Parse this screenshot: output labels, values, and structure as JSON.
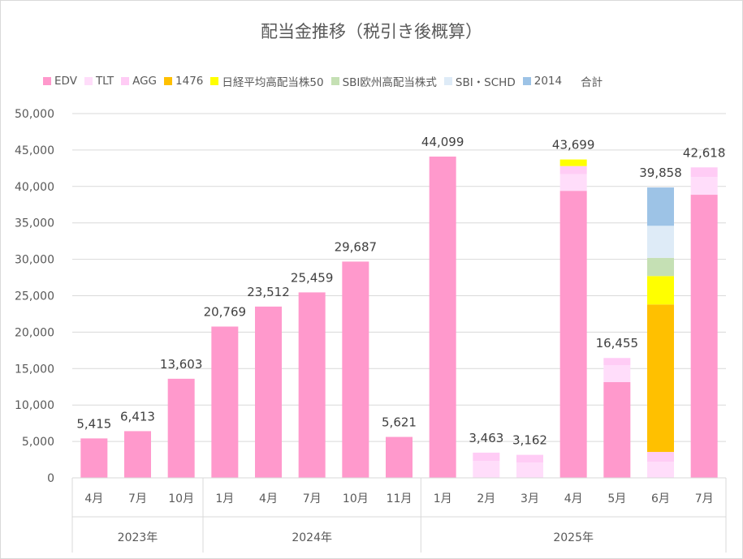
{
  "chart_data": {
    "type": "bar",
    "stacked": true,
    "title": "配当金推移（税引き後概算）",
    "ylim": [
      0,
      50000
    ],
    "yticks": [
      0,
      5000,
      10000,
      15000,
      20000,
      25000,
      30000,
      35000,
      40000,
      45000,
      50000
    ],
    "ytick_labels": [
      "0",
      "5,000",
      "10,000",
      "15,000",
      "20,000",
      "25,000",
      "30,000",
      "35,000",
      "40,000",
      "45,000",
      "50,000"
    ],
    "grid": true,
    "legend_position": "top",
    "categories": [
      "4月",
      "7月",
      "10月",
      "1月",
      "4月",
      "7月",
      "10月",
      "11月",
      "1月",
      "2月",
      "3月",
      "4月",
      "5月",
      "6月",
      "7月"
    ],
    "year_groups": [
      {
        "label": "2023年",
        "count": 3
      },
      {
        "label": "2024年",
        "count": 5
      },
      {
        "label": "2025年",
        "count": 7
      }
    ],
    "series": [
      {
        "name": "EDV",
        "color": "#FF99CC",
        "values": [
          5415,
          6413,
          13603,
          20769,
          23512,
          25459,
          29687,
          5621,
          44099,
          0,
          0,
          39400,
          13140,
          0,
          38860
        ]
      },
      {
        "name": "TLT",
        "color": "#FFDDFA",
        "values": [
          0,
          0,
          0,
          0,
          0,
          0,
          0,
          0,
          0,
          2340,
          2100,
          2300,
          2340,
          2200,
          2440
        ]
      },
      {
        "name": "AGG",
        "color": "#FFCCF5",
        "values": [
          0,
          0,
          0,
          0,
          0,
          0,
          0,
          0,
          0,
          1123,
          1062,
          1100,
          975,
          1360,
          1318
        ]
      },
      {
        "name": "1476",
        "color": "#FFC000",
        "values": [
          0,
          0,
          0,
          0,
          0,
          0,
          0,
          0,
          0,
          0,
          0,
          0,
          0,
          20240,
          0
        ]
      },
      {
        "name": "日経平均高配当株50",
        "color": "#FFFF00",
        "values": [
          0,
          0,
          0,
          0,
          0,
          0,
          0,
          0,
          0,
          0,
          0,
          899,
          0,
          3900,
          0
        ]
      },
      {
        "name": "SBI欧州高配当株式",
        "color": "#C5E0B4",
        "values": [
          0,
          0,
          0,
          0,
          0,
          0,
          0,
          0,
          0,
          0,
          0,
          0,
          0,
          2500,
          0
        ]
      },
      {
        "name": "SBI・SCHD",
        "color": "#DEEBF7",
        "values": [
          0,
          0,
          0,
          0,
          0,
          0,
          0,
          0,
          0,
          0,
          0,
          0,
          0,
          4400,
          0
        ]
      },
      {
        "name": "2014",
        "color": "#9DC3E6",
        "values": [
          0,
          0,
          0,
          0,
          0,
          0,
          0,
          0,
          0,
          0,
          0,
          0,
          0,
          5258,
          0
        ]
      }
    ],
    "total_series_name": "合計",
    "totals": [
      5415,
      6413,
      13603,
      20769,
      23512,
      25459,
      29687,
      5621,
      44099,
      3463,
      3162,
      43699,
      16455,
      39858,
      42618
    ],
    "total_labels": [
      "5,415",
      "6,413",
      "13,603",
      "20,769",
      "23,512",
      "25,459",
      "29,687",
      "5,621",
      "44,099",
      "3,463",
      "3,162",
      "43,699",
      "16,455",
      "39,858",
      "42,618"
    ]
  }
}
